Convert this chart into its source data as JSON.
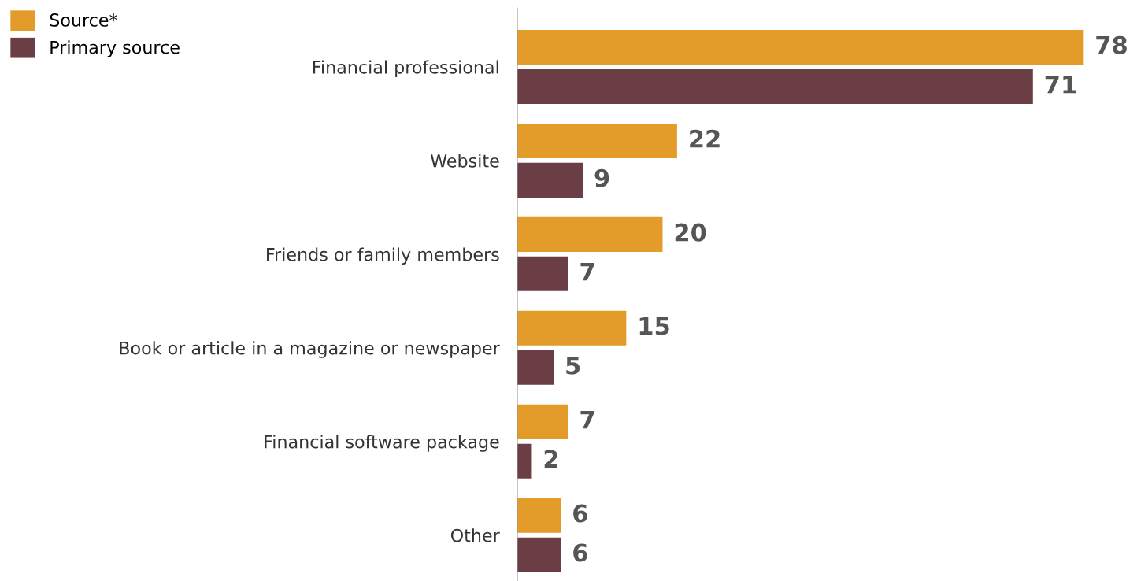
{
  "chart_data": {
    "type": "bar",
    "orientation": "horizontal",
    "categories": [
      "Financial professional",
      "Website",
      "Friends or family members",
      "Book or article in a magazine or newspaper",
      "Financial software package",
      "Other"
    ],
    "series": [
      {
        "name": "Source*",
        "color": "#e39b2a",
        "values": [
          78,
          22,
          20,
          15,
          7,
          6
        ]
      },
      {
        "name": "Primary source",
        "color": "#6b3d45",
        "values": [
          71,
          9,
          7,
          5,
          2,
          6
        ]
      }
    ],
    "data_labels": true,
    "legend": "top left",
    "tick_labels": "y",
    "grid": false
  }
}
